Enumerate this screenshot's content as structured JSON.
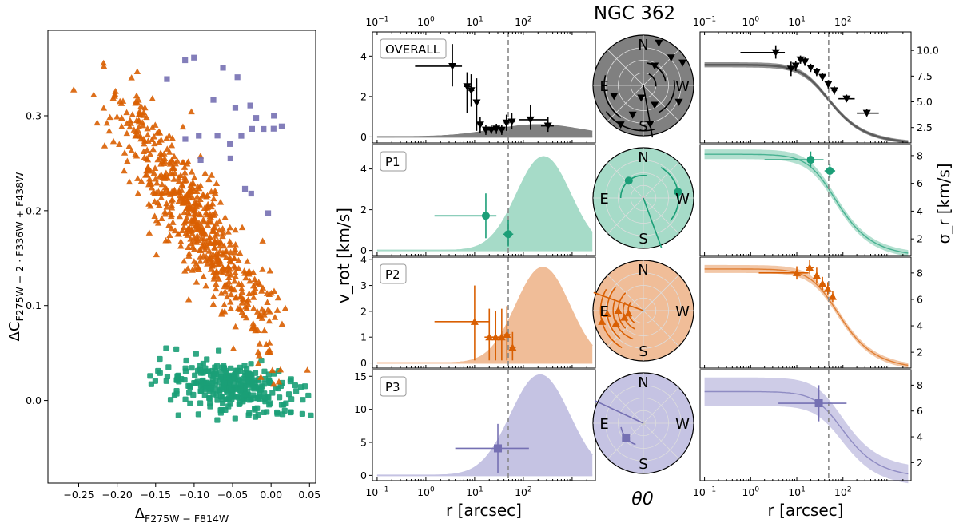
{
  "chart_data": [
    {
      "id": "chromosome-map",
      "type": "scatter",
      "xlabel_main": "Δ",
      "xlabel_sub": "F275W − F814W",
      "ylabel_main": "ΔC",
      "ylabel_sub": "F275W − 2 · F336W + F438W",
      "xlim": [
        -0.29,
        0.058
      ],
      "ylim": [
        -0.087,
        0.39
      ],
      "xticks": [
        -0.25,
        -0.2,
        -0.15,
        -0.1,
        -0.05,
        0.0,
        0.05
      ],
      "xtick_labels": [
        "−0.25",
        "−0.20",
        "−0.15",
        "−0.10",
        "−0.05",
        "0.00",
        "0.05"
      ],
      "yticks": [
        0.0,
        0.1,
        0.2,
        0.3
      ],
      "ytick_labels": [
        "0.0",
        "0.1",
        "0.2",
        "0.3"
      ],
      "populations": [
        {
          "name": "P1",
          "marker": "square-round",
          "color": "#1b9e77",
          "count": 300,
          "center": [
            -0.05,
            0.015
          ],
          "spread": [
            0.045,
            0.025
          ],
          "slope": -0.12
        },
        {
          "name": "P2",
          "marker": "triangle",
          "color": "#d95f02",
          "count": 620,
          "center": [
            -0.095,
            0.185
          ],
          "spread": [
            0.055,
            0.05
          ],
          "slope": -1.15
        },
        {
          "name": "P3",
          "marker": "square",
          "color": "#7570b3",
          "count": 24,
          "center": [
            -0.06,
            0.29
          ],
          "spread": [
            0.045,
            0.035
          ],
          "slope": 0
        }
      ]
    },
    {
      "id": "rotation-profiles",
      "type": "scatter",
      "title": "NGC 362",
      "xlabel": "r [arcsec]",
      "ylabel": "v_rot [km/s]",
      "xscale": "log",
      "xlim": [
        0.08,
        3000
      ],
      "top_tick_labels": [
        "10^-1",
        "10^0",
        "10^1",
        "10^2"
      ],
      "bottom_tick_labels": [
        "10^-1",
        "10^0",
        "10^1",
        "10^2"
      ],
      "vline_r": 49,
      "panels": [
        {
          "label": "OVERALL",
          "color": "#000000",
          "fill": "#808080",
          "marker": "triangle-down",
          "ylim": [
            -0.3,
            5.2
          ],
          "yticks": [
            0,
            2,
            4
          ],
          "peak_r": 200,
          "peak_v": 0.6,
          "width": 0.9,
          "points": [
            {
              "r": 3.5,
              "v": 3.5,
              "rlo": 0.6,
              "rhi": 5.5,
              "vlo": 2.5,
              "vhi": 4.6
            },
            {
              "r": 7,
              "v": 2.5,
              "rlo": 6,
              "rhi": 8.5,
              "vlo": 1.2,
              "vhi": 3.2
            },
            {
              "r": 8.5,
              "v": 2.3,
              "rlo": 7.5,
              "rhi": 9.8,
              "vlo": 1.5,
              "vhi": 3.1
            },
            {
              "r": 11,
              "v": 1.7,
              "rlo": 10,
              "rhi": 12.5,
              "vlo": 0.3,
              "vhi": 2.9
            },
            {
              "r": 13,
              "v": 0.6,
              "rlo": 11.5,
              "rhi": 15,
              "vlo": 0.2,
              "vhi": 1.0
            },
            {
              "r": 17,
              "v": 0.35,
              "rlo": 15,
              "rhi": 20,
              "vlo": 0.1,
              "vhi": 0.6
            },
            {
              "r": 22,
              "v": 0.35,
              "rlo": 19,
              "rhi": 26,
              "vlo": 0.15,
              "vhi": 0.6
            },
            {
              "r": 28,
              "v": 0.4,
              "rlo": 25,
              "rhi": 32,
              "vlo": 0.15,
              "vhi": 0.65
            },
            {
              "r": 36,
              "v": 0.35,
              "rlo": 32,
              "rhi": 41,
              "vlo": 0.1,
              "vhi": 0.6
            },
            {
              "r": 45,
              "v": 0.7,
              "rlo": 40,
              "rhi": 52,
              "vlo": 0.3,
              "vhi": 1.1
            },
            {
              "r": 58,
              "v": 0.75,
              "rlo": 52,
              "rhi": 66,
              "vlo": 0.4,
              "vhi": 1.2
            },
            {
              "r": 140,
              "v": 0.85,
              "rlo": 80,
              "rhi": 320,
              "vlo": 0.35,
              "vhi": 1.6
            },
            {
              "r": 320,
              "v": 0.55,
              "rlo": 230,
              "rhi": 420,
              "vlo": 0.25,
              "vhi": 1.0
            }
          ]
        },
        {
          "label": "P1",
          "color": "#1b9e77",
          "fill": "#a6dbc8",
          "marker": "circle",
          "ylim": [
            -0.25,
            5.2
          ],
          "yticks": [
            0,
            2,
            4
          ],
          "peak_r": 260,
          "peak_v": 4.6,
          "width": 0.55,
          "points": [
            {
              "r": 17,
              "v": 1.7,
              "rlo": 1.5,
              "rhi": 28,
              "vlo": 0.6,
              "vhi": 2.8
            },
            {
              "r": 49,
              "v": 0.8,
              "rlo": 38,
              "rhi": 62,
              "vlo": 0.2,
              "vhi": 1.5
            }
          ]
        },
        {
          "label": "P2",
          "color": "#d95f02",
          "fill": "#f0bd98",
          "marker": "triangle",
          "ylim": [
            -0.2,
            4.1
          ],
          "yticks": [
            0,
            1,
            2,
            3,
            4
          ],
          "peak_r": 250,
          "peak_v": 3.7,
          "width": 0.55,
          "points": [
            {
              "r": 10,
              "v": 1.6,
              "rlo": 1.5,
              "rhi": 20,
              "vlo": 0.1,
              "vhi": 3.0
            },
            {
              "r": 20,
              "v": 1.0,
              "rlo": 16,
              "rhi": 25,
              "vlo": 0.1,
              "vhi": 2.1
            },
            {
              "r": 27,
              "v": 1.0,
              "rlo": 22,
              "rhi": 33,
              "vlo": 0.1,
              "vhi": 2.0
            },
            {
              "r": 36,
              "v": 1.0,
              "rlo": 30,
              "rhi": 43,
              "vlo": 0.1,
              "vhi": 2.1
            },
            {
              "r": 46,
              "v": 1.1,
              "rlo": 40,
              "rhi": 54,
              "vlo": 0.1,
              "vhi": 2.2
            },
            {
              "r": 60,
              "v": 0.6,
              "rlo": 52,
              "rhi": 70,
              "vlo": 0.1,
              "vhi": 1.2
            }
          ]
        },
        {
          "label": "P3",
          "color": "#7570b3",
          "fill": "#c5c3e3",
          "marker": "square",
          "ylim": [
            -0.8,
            16
          ],
          "yticks": [
            0,
            5,
            10,
            15
          ],
          "peak_r": 220,
          "peak_v": 15.2,
          "width": 0.6,
          "points": [
            {
              "r": 30,
              "v": 4.1,
              "rlo": 4,
              "rhi": 130,
              "vlo": 0.3,
              "vhi": 7.8
            }
          ]
        }
      ]
    },
    {
      "id": "position-angle",
      "type": "polar",
      "xlabel": "θ0",
      "compass": [
        "N",
        "E",
        "W",
        "S"
      ],
      "panels": [
        {
          "label": "OVERALL",
          "bg": "#808080",
          "color": "#000000",
          "marker": "triangle-down",
          "rings": [
            0.25,
            0.45,
            0.62,
            0.78,
            0.9
          ],
          "arc_deg": 70,
          "line_deg": 80,
          "points": [
            {
              "ring": 0.9,
              "deg": 30
            },
            {
              "ring": 0.78,
              "deg": 45
            },
            {
              "ring": 0.78,
              "deg": -25
            },
            {
              "ring": 0.62,
              "deg": 200
            },
            {
              "ring": 0.62,
              "deg": 250
            },
            {
              "ring": 0.9,
              "deg": 240
            },
            {
              "ring": 0.45,
              "deg": 300
            },
            {
              "ring": 0.78,
              "deg": 280
            },
            {
              "ring": 0.45,
              "deg": 60
            },
            {
              "ring": 0.25,
              "deg": 260
            },
            {
              "ring": 0.9,
              "deg": 70
            }
          ]
        },
        {
          "label": "P1",
          "bg": "#a6dbc8",
          "color": "#1b9e77",
          "marker": "circle",
          "rings": [
            0.7,
            0.45
          ],
          "arc_deg": 100,
          "line_deg": 70,
          "points": [
            {
              "ring": 0.7,
              "deg": 10
            },
            {
              "ring": 0.45,
              "deg": 130
            }
          ]
        },
        {
          "label": "P2",
          "bg": "#f0bd98",
          "color": "#d95f02",
          "marker": "triangle",
          "rings": [
            0.85,
            0.72,
            0.6,
            0.5,
            0.4,
            0.3
          ],
          "arc_deg": 90,
          "line_deg": 200,
          "points": [
            {
              "ring": 0.85,
              "deg": 195
            },
            {
              "ring": 0.72,
              "deg": 185
            },
            {
              "ring": 0.6,
              "deg": 205
            },
            {
              "ring": 0.5,
              "deg": 180
            },
            {
              "ring": 0.4,
              "deg": 200
            },
            {
              "ring": 0.3,
              "deg": 190
            }
          ]
        },
        {
          "label": "P3",
          "bg": "#c5c3e3",
          "color": "#7570b3",
          "marker": "square",
          "rings": [
            0.45
          ],
          "arc_deg": 60,
          "line_deg": 205,
          "points": [
            {
              "ring": 0.45,
              "deg": 220
            }
          ]
        }
      ]
    },
    {
      "id": "dispersion-profiles",
      "type": "line",
      "xlabel": "r [arcsec]",
      "ylabel": "σ_r [km/s]",
      "xscale": "log",
      "xlim": [
        0.08,
        3000
      ],
      "vline_r": 49,
      "panels": [
        {
          "color": "#000000",
          "band": "#7f7f7f",
          "marker": "triangle-down",
          "ylim": [
            1.0,
            11.8
          ],
          "yticks": [
            2.5,
            5.0,
            7.5,
            10.0
          ],
          "ytick_labels": [
            "2.5",
            "5.0",
            "7.5",
            "10.0"
          ],
          "s0": 8.6,
          "rc": 30,
          "s_inf": 0.9,
          "band_w": 0.25,
          "points": [
            {
              "r": 3.5,
              "s": 9.8,
              "rlo": 0.6,
              "rhi": 5.5,
              "slo": 9.2,
              "shi": 10.5
            },
            {
              "r": 7.5,
              "s": 8.2,
              "rlo": 6,
              "rhi": 9,
              "slo": 7.5,
              "shi": 8.9
            },
            {
              "r": 9.5,
              "s": 8.5,
              "rlo": 8.5,
              "rhi": 10.5,
              "slo": 8.0,
              "shi": 9.0
            },
            {
              "r": 12,
              "s": 9.1,
              "rlo": 11,
              "rhi": 13.5,
              "slo": 8.7,
              "shi": 9.5
            },
            {
              "r": 15,
              "s": 8.9,
              "rlo": 13.5,
              "rhi": 17,
              "slo": 8.5,
              "shi": 9.3
            },
            {
              "r": 20,
              "s": 8.3,
              "rlo": 18,
              "rhi": 22,
              "slo": 7.9,
              "shi": 8.7
            },
            {
              "r": 27,
              "s": 7.9,
              "rlo": 24,
              "rhi": 30,
              "slo": 7.5,
              "shi": 8.3
            },
            {
              "r": 36,
              "s": 7.4,
              "rlo": 32,
              "rhi": 40,
              "slo": 7.0,
              "shi": 7.8
            },
            {
              "r": 48,
              "s": 6.7,
              "rlo": 43,
              "rhi": 53,
              "slo": 6.3,
              "shi": 7.1
            },
            {
              "r": 65,
              "s": 6.1,
              "rlo": 57,
              "rhi": 74,
              "slo": 5.7,
              "shi": 6.5
            },
            {
              "r": 120,
              "s": 5.3,
              "rlo": 80,
              "rhi": 180,
              "slo": 5.0,
              "shi": 5.7
            },
            {
              "r": 330,
              "s": 3.9,
              "rlo": 200,
              "rhi": 600,
              "slo": 3.6,
              "shi": 4.3
            }
          ]
        },
        {
          "color": "#1b9e77",
          "band": "#a6dbc8",
          "marker": "circle",
          "ylim": [
            0.8,
            8.8
          ],
          "yticks": [
            2,
            4,
            6,
            8
          ],
          "ytick_labels": [
            "2",
            "4",
            "6",
            "8"
          ],
          "s0": 8.1,
          "rc": 42,
          "s_inf": 0.7,
          "band_w": 0.35,
          "points": [
            {
              "r": 20,
              "s": 7.7,
              "rlo": 2,
              "rhi": 38,
              "slo": 7.2,
              "shi": 8.3
            },
            {
              "r": 52,
              "s": 6.9,
              "rlo": 40,
              "rhi": 68,
              "slo": 6.4,
              "shi": 7.4
            }
          ]
        },
        {
          "color": "#d95f02",
          "band": "#f0bd98",
          "marker": "triangle",
          "ylim": [
            0.8,
            9.2
          ],
          "yticks": [
            2,
            4,
            6,
            8
          ],
          "ytick_labels": [
            "2",
            "4",
            "6",
            "8"
          ],
          "s0": 8.3,
          "rc": 48,
          "s_inf": 0.7,
          "band_w": 0.3,
          "points": [
            {
              "r": 10,
              "s": 8.0,
              "rlo": 1.5,
              "rhi": 18,
              "slo": 7.5,
              "shi": 8.5
            },
            {
              "r": 19,
              "s": 8.4,
              "rlo": 16,
              "rhi": 23,
              "slo": 7.9,
              "shi": 9.0
            },
            {
              "r": 27,
              "s": 7.8,
              "rlo": 23,
              "rhi": 31,
              "slo": 7.2,
              "shi": 8.4
            },
            {
              "r": 36,
              "s": 7.2,
              "rlo": 32,
              "rhi": 41,
              "slo": 6.7,
              "shi": 7.7
            },
            {
              "r": 47,
              "s": 6.8,
              "rlo": 42,
              "rhi": 52,
              "slo": 6.3,
              "shi": 7.3
            },
            {
              "r": 60,
              "s": 6.2,
              "rlo": 54,
              "rhi": 67,
              "slo": 5.8,
              "shi": 6.6
            }
          ]
        },
        {
          "color": "#7570b3",
          "band": "#c5c3e3",
          "marker": "square",
          "ylim": [
            0.6,
            9.2
          ],
          "yticks": [
            2,
            4,
            6,
            8
          ],
          "ytick_labels": [
            "2",
            "4",
            "6",
            "8"
          ],
          "s0": 7.5,
          "rc": 60,
          "s_inf": 0.8,
          "band_w": 1.1,
          "points": [
            {
              "r": 30,
              "s": 6.6,
              "rlo": 4,
              "rhi": 120,
              "slo": 5.2,
              "shi": 8.0
            }
          ]
        }
      ]
    }
  ]
}
